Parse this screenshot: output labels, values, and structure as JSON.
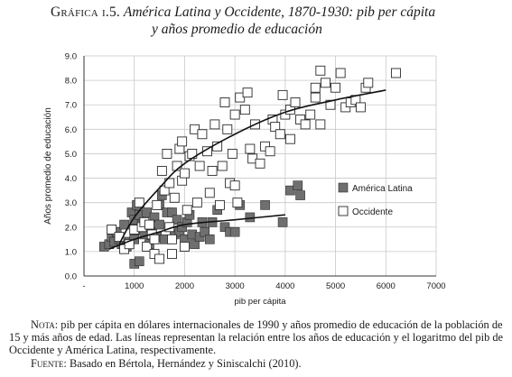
{
  "caption": {
    "label": "Gráfica i.5.",
    "title_line1": "América Latina y Occidente, 1870-1930: pib per cápita",
    "title_line2": "y años promedio de educación"
  },
  "notes": {
    "nota_label": "Nota:",
    "nota_text": "pib per cápita en dólares internacionales de 1990 y años promedio de educación de la población de 15 y más años de edad. Las líneas representan la relación entre los años de educación y el logaritmo del pib de Occidente y América Latina, respectivamente.",
    "fuente_label": "Fuente:",
    "fuente_text": "Basado en Bértola, Hernández y Siniscalchi (2010)."
  },
  "chart_data": {
    "type": "scatter",
    "xlabel": "pib per cápita",
    "ylabel": "Años promedio de educación",
    "xlim": [
      0,
      7000
    ],
    "ylim": [
      0,
      9
    ],
    "x_ticks": [
      0,
      1000,
      2000,
      3000,
      4000,
      5000,
      6000,
      7000
    ],
    "x_tick_labels": [
      "-",
      "1000",
      "2000",
      "3000",
      "4000",
      "5000",
      "6000",
      "7000"
    ],
    "y_ticks": [
      0,
      1,
      2,
      3,
      4,
      5,
      6,
      7,
      8,
      9
    ],
    "y_tick_labels": [
      "0.0",
      "1.0",
      "2.0",
      "3.0",
      "4.0",
      "5.0",
      "6.0",
      "7.0",
      "8.0",
      "9.0"
    ],
    "grid": true,
    "legend_position": "right, lower half",
    "colors": {
      "latam": "#6f6f6f",
      "occidente": "#ffffff",
      "edge": "#2b2b2b",
      "grid": "#c8c8c8",
      "axis": "#333333"
    },
    "series": [
      {
        "name": "América Latina",
        "marker": "filled-square",
        "points": [
          [
            400,
            1.2
          ],
          [
            500,
            1.3
          ],
          [
            550,
            1.6
          ],
          [
            600,
            1.4
          ],
          [
            650,
            1.8
          ],
          [
            700,
            1.5
          ],
          [
            750,
            1.3
          ],
          [
            800,
            2.1
          ],
          [
            850,
            1.2
          ],
          [
            900,
            1.4
          ],
          [
            950,
            2.6
          ],
          [
            1000,
            2.3
          ],
          [
            1000,
            1.5
          ],
          [
            1050,
            2.9
          ],
          [
            1100,
            1.9
          ],
          [
            1100,
            2.5
          ],
          [
            1150,
            2.1
          ],
          [
            1200,
            1.7
          ],
          [
            1250,
            2.6
          ],
          [
            1300,
            1.3
          ],
          [
            1350,
            1.8
          ],
          [
            1400,
            2.4
          ],
          [
            1450,
            1.6
          ],
          [
            1500,
            2.9
          ],
          [
            1500,
            2.1
          ],
          [
            1550,
            3.3
          ],
          [
            1600,
            1.5
          ],
          [
            1650,
            2.6
          ],
          [
            1700,
            2.0
          ],
          [
            1750,
            2.6
          ],
          [
            1800,
            1.7
          ],
          [
            1850,
            2.3
          ],
          [
            1900,
            1.8
          ],
          [
            1950,
            2.0
          ],
          [
            2000,
            1.5
          ],
          [
            2050,
            2.2
          ],
          [
            2100,
            2.5
          ],
          [
            2150,
            1.7
          ],
          [
            2200,
            1.3
          ],
          [
            2300,
            1.6
          ],
          [
            2350,
            2.2
          ],
          [
            2400,
            1.8
          ],
          [
            2500,
            1.5
          ],
          [
            2550,
            2.2
          ],
          [
            2650,
            2.7
          ],
          [
            2800,
            2.0
          ],
          [
            2900,
            1.8
          ],
          [
            3000,
            1.8
          ],
          [
            3100,
            2.9
          ],
          [
            3300,
            2.4
          ],
          [
            3600,
            2.9
          ],
          [
            3950,
            2.2
          ],
          [
            4100,
            3.5
          ],
          [
            4250,
            3.7
          ],
          [
            4300,
            3.3
          ],
          [
            1000,
            0.5
          ],
          [
            1100,
            0.6
          ]
        ]
      },
      {
        "name": "Occidente",
        "marker": "open-square",
        "points": [
          [
            550,
            1.9
          ],
          [
            700,
            1.6
          ],
          [
            800,
            1.1
          ],
          [
            900,
            1.3
          ],
          [
            1000,
            1.9
          ],
          [
            1100,
            3.0
          ],
          [
            1150,
            2.0
          ],
          [
            1200,
            2.2
          ],
          [
            1250,
            1.2
          ],
          [
            1300,
            2.1
          ],
          [
            1350,
            1.7
          ],
          [
            1400,
            0.9
          ],
          [
            1400,
            1.5
          ],
          [
            1450,
            2.9
          ],
          [
            1500,
            0.7
          ],
          [
            1550,
            4.3
          ],
          [
            1600,
            3.5
          ],
          [
            1650,
            5.0
          ],
          [
            1700,
            3.8
          ],
          [
            1700,
            2.0
          ],
          [
            1750,
            1.5
          ],
          [
            1750,
            0.9
          ],
          [
            1800,
            3.2
          ],
          [
            1850,
            4.5
          ],
          [
            1900,
            5.2
          ],
          [
            1950,
            5.5
          ],
          [
            1950,
            3.9
          ],
          [
            2000,
            4.2
          ],
          [
            2000,
            1.2
          ],
          [
            2050,
            2.7
          ],
          [
            2100,
            4.9
          ],
          [
            2150,
            5.0
          ],
          [
            2200,
            6.0
          ],
          [
            2250,
            3.0
          ],
          [
            2300,
            4.5
          ],
          [
            2350,
            5.8
          ],
          [
            2450,
            5.1
          ],
          [
            2500,
            3.4
          ],
          [
            2550,
            4.3
          ],
          [
            2600,
            6.2
          ],
          [
            2650,
            5.3
          ],
          [
            2700,
            2.9
          ],
          [
            2750,
            4.5
          ],
          [
            2800,
            7.1
          ],
          [
            2850,
            6.0
          ],
          [
            2900,
            3.8
          ],
          [
            2950,
            5.0
          ],
          [
            3000,
            6.6
          ],
          [
            3000,
            3.7
          ],
          [
            3050,
            3.0
          ],
          [
            3100,
            7.3
          ],
          [
            3200,
            6.8
          ],
          [
            3250,
            7.5
          ],
          [
            3300,
            5.2
          ],
          [
            3350,
            4.8
          ],
          [
            3400,
            6.2
          ],
          [
            3500,
            4.6
          ],
          [
            3600,
            5.3
          ],
          [
            3700,
            5.1
          ],
          [
            3750,
            6.4
          ],
          [
            3800,
            6.1
          ],
          [
            3900,
            5.8
          ],
          [
            3950,
            7.4
          ],
          [
            4000,
            6.6
          ],
          [
            4100,
            5.6
          ],
          [
            4100,
            6.8
          ],
          [
            4200,
            7.1
          ],
          [
            4300,
            6.4
          ],
          [
            4400,
            6.2
          ],
          [
            4500,
            6.6
          ],
          [
            4600,
            7.3
          ],
          [
            4600,
            7.7
          ],
          [
            4700,
            8.4
          ],
          [
            4700,
            6.2
          ],
          [
            4800,
            7.9
          ],
          [
            4900,
            7.0
          ],
          [
            5000,
            7.7
          ],
          [
            5100,
            8.3
          ],
          [
            5200,
            6.9
          ],
          [
            5300,
            7.1
          ],
          [
            5400,
            7.2
          ],
          [
            5500,
            6.9
          ],
          [
            5600,
            7.7
          ],
          [
            5650,
            7.9
          ],
          [
            6200,
            8.3
          ]
        ]
      }
    ],
    "fit_lines": [
      {
        "series": "Occidente",
        "points": [
          [
            700,
            1.3
          ],
          [
            1000,
            2.4
          ],
          [
            1500,
            3.6
          ],
          [
            2000,
            4.6
          ],
          [
            3000,
            5.8
          ],
          [
            4000,
            6.7
          ],
          [
            5000,
            7.2
          ],
          [
            6000,
            7.6
          ]
        ]
      },
      {
        "series": "América Latina",
        "points": [
          [
            500,
            1.1
          ],
          [
            1000,
            1.5
          ],
          [
            1500,
            1.8
          ],
          [
            2000,
            2.1
          ],
          [
            3000,
            2.3
          ],
          [
            4000,
            2.5
          ]
        ]
      }
    ]
  }
}
